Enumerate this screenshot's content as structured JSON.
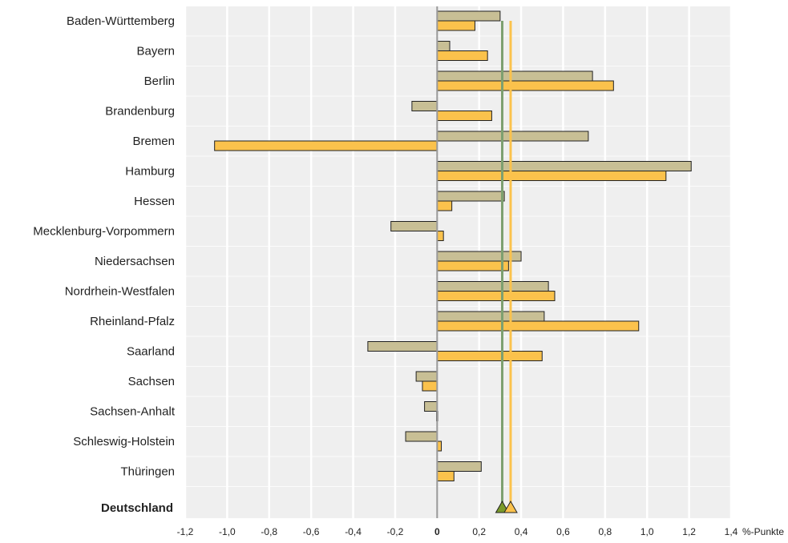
{
  "chart_data": {
    "type": "bar",
    "orientation": "horizontal",
    "categories": [
      "Baden-Württemberg",
      "Bayern",
      "Berlin",
      "Brandenburg",
      "Bremen",
      "Hamburg",
      "Hessen",
      "Mecklenburg-Vorpommern",
      "Niedersachsen",
      "Nordrhein-Westfalen",
      "Rheinland-Pfalz",
      "Saarland",
      "Sachsen",
      "Sachsen-Anhalt",
      "Schleswig-Holstein",
      "Thüringen"
    ],
    "series": [
      {
        "color": "#c8bf95",
        "values": [
          0.3,
          0.06,
          0.74,
          -0.12,
          0.72,
          1.21,
          0.32,
          -0.22,
          0.4,
          0.53,
          0.51,
          -0.33,
          -0.1,
          -0.06,
          -0.15,
          0.21
        ]
      },
      {
        "color": "#fbc24c",
        "values": [
          0.18,
          0.24,
          0.84,
          0.26,
          -1.06,
          1.09,
          0.07,
          0.03,
          0.34,
          0.56,
          0.96,
          0.5,
          -0.07,
          0.0,
          0.02,
          0.08
        ]
      }
    ],
    "total": {
      "label": "Deutschland",
      "values": [
        0.31,
        0.35
      ],
      "colors": [
        "#7da070",
        "#fbc24c"
      ],
      "marker_fills": [
        "#7a9a2a",
        "#fbc24c"
      ]
    },
    "xlim": [
      -1.2,
      1.4
    ],
    "xticks": [
      -1.2,
      -1.0,
      -0.8,
      -0.6,
      -0.4,
      -0.2,
      0,
      0.2,
      0.4,
      0.6,
      0.8,
      1.0,
      1.2,
      1.4
    ],
    "xtick_labels": [
      "-1,2",
      "-1,0",
      "-0,8",
      "-0,6",
      "-0,4",
      "-0,2",
      "0",
      "0,2",
      "0,4",
      "0,6",
      "0,8",
      "1,0",
      "1,2",
      "1,4"
    ],
    "unit": "%-Punkte",
    "grid": true,
    "background": "#efefef",
    "zero_line_color": "#999999"
  }
}
